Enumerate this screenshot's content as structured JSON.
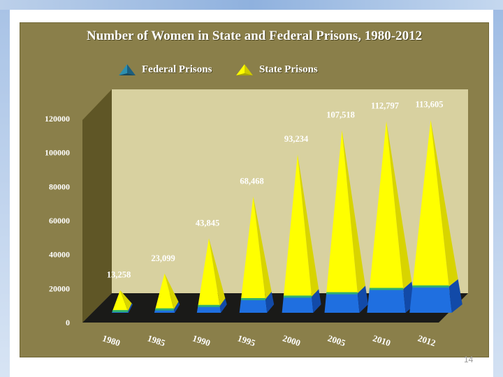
{
  "slide": {
    "page_number": "14"
  },
  "colors": {
    "panel_bg": "#8a7f4a",
    "floor_bg": "#1a1a18",
    "wall_back": "#d8d1a0",
    "wall_side": "#5f5626",
    "state_color": "#ffff00",
    "state_shade": "#d8d400",
    "federal_color": "#1f6fe0",
    "federal_shade": "#124aa8"
  },
  "chart_data": {
    "type": "bar",
    "style": "3d-pyramid-stacked",
    "title": "Number of Women in State and Federal Prisons, 1980-2012",
    "categories": [
      "1980",
      "1985",
      "1990",
      "1995",
      "2000",
      "2005",
      "2010",
      "2012"
    ],
    "series": [
      {
        "name": "Federal Prisons",
        "values": [
          1000,
          2000,
          4000,
          8000,
          9500,
          11500,
          14000,
          15500
        ]
      },
      {
        "name": "State Prisons",
        "values": [
          12258,
          21099,
          39845,
          60468,
          83734,
          96018,
          98797,
          98105
        ]
      }
    ],
    "totals": [
      13258,
      23099,
      43845,
      68468,
      93234,
      107518,
      112797,
      113605
    ],
    "data_labels": [
      "13,258",
      "23,099",
      "43,845",
      "68,468",
      "93,234",
      "107,518",
      "112,797",
      "113,605"
    ],
    "ylim": [
      0,
      120000
    ],
    "yticks": [
      0,
      20000,
      40000,
      60000,
      80000,
      100000,
      120000
    ],
    "ytick_labels": [
      "0",
      "20000",
      "40000",
      "60000",
      "80000",
      "100000",
      "120000"
    ],
    "legend": {
      "position": "top-center",
      "entries": [
        {
          "label": "Federal Prisons",
          "marker": "blue-pyramid-icon"
        },
        {
          "label": "State Prisons",
          "marker": "yellow-pyramid-icon"
        }
      ]
    },
    "xlabel": "",
    "ylabel": ""
  }
}
